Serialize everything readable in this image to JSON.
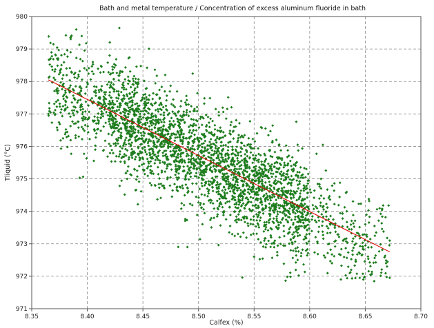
{
  "chart_data": {
    "type": "scatter",
    "title": "Bath and metal temperature / Concentration of excess aluminum fluoride in bath",
    "xlabel": "Calfex (%)",
    "ylabel": "Tliquid (°C)",
    "xlim": [
      8.35,
      8.7
    ],
    "ylim": [
      971,
      980
    ],
    "x_ticks": [
      "8.35",
      "8.40",
      "8.45",
      "8.50",
      "8.55",
      "8.60",
      "8.65",
      "8.70"
    ],
    "y_ticks": [
      "971",
      "972",
      "973",
      "974",
      "975",
      "976",
      "977",
      "978",
      "979",
      "980"
    ],
    "grid": true,
    "colors": {
      "points": "#1e7d1e",
      "fit_line": "#e00000"
    },
    "fit_line": {
      "x": [
        8.365,
        8.672
      ],
      "y": [
        978.05,
        972.75
      ]
    },
    "point_cloud": {
      "count": 3000,
      "x_range": [
        8.365,
        8.672
      ],
      "y_range": [
        971.85,
        979.65
      ],
      "trend_slope": -17.25,
      "trend_intercept": 1122.3,
      "residual_sd": 0.8
    },
    "sample_points": [
      {
        "x": 8.39,
        "y": 979.6
      },
      {
        "x": 8.395,
        "y": 979.4
      },
      {
        "x": 8.385,
        "y": 978.9
      },
      {
        "x": 8.405,
        "y": 978.6
      },
      {
        "x": 8.365,
        "y": 977.0
      },
      {
        "x": 8.47,
        "y": 978.2
      },
      {
        "x": 8.57,
        "y": 976.2
      },
      {
        "x": 8.62,
        "y": 972.4
      },
      {
        "x": 8.645,
        "y": 971.95
      },
      {
        "x": 8.658,
        "y": 971.85
      },
      {
        "x": 8.672,
        "y": 973.1
      },
      {
        "x": 8.65,
        "y": 973.6
      },
      {
        "x": 8.49,
        "y": 972.9
      },
      {
        "x": 8.55,
        "y": 972.6
      }
    ]
  }
}
